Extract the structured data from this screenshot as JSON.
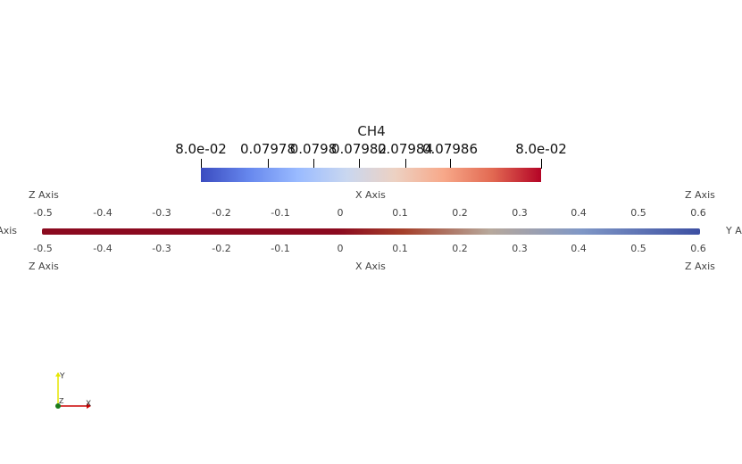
{
  "legend": {
    "title": "CH4",
    "tick_labels": [
      "8.0e-02",
      "0.07978",
      "0.0798",
      "0.07982",
      "0.07984",
      "0.07986",
      "8.0e-02"
    ],
    "colormap": [
      "#3b4cc0",
      "#6788ee",
      "#9abbff",
      "#c9d7f0",
      "#edd1c2",
      "#f7a889",
      "#e26952",
      "#b40426"
    ]
  },
  "grid": {
    "top_z_left": "Z Axis",
    "top_x_center": "X Axis",
    "top_z_right": "Z Axis",
    "bottom_z_left": "Z Axis",
    "bottom_x_center": "X Axis",
    "bottom_z_right": "Z Axis",
    "left_y": "Y Axis",
    "right_y": "Y Axis",
    "x_ticks": [
      "-0.5",
      "-0.4",
      "-0.3",
      "-0.2",
      "-0.1",
      "0",
      "0.1",
      "0.2",
      "0.3",
      "0.4",
      "0.5",
      "0.6"
    ]
  },
  "data_bar": {
    "colors": [
      "#8b0a1f",
      "#8b0a1f",
      "#a5402b",
      "#b7a89b",
      "#7f97c6",
      "#3c4fa2"
    ]
  },
  "orientation": {
    "x": "X",
    "y": "Y",
    "z": "Z",
    "x_color": "#cc0000",
    "y_color": "#e6e600",
    "z_color": "#1a7a1a"
  }
}
